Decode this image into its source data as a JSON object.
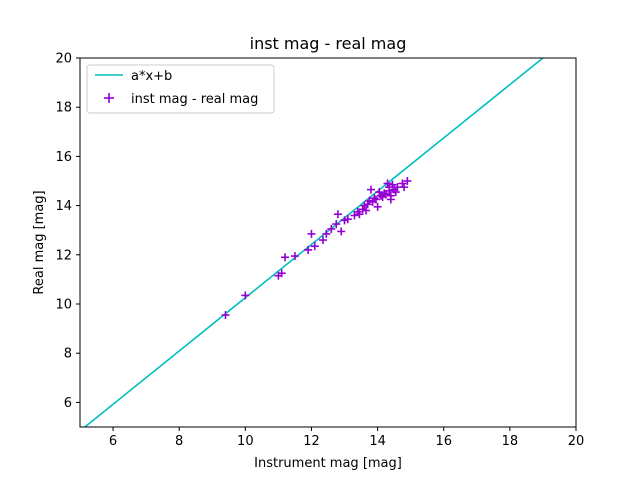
{
  "chart_data": {
    "type": "scatter",
    "title": "inst mag - real mag",
    "xlabel": "Instrument mag [mag]",
    "ylabel": "Real mag [mag]",
    "xlim": [
      5,
      20
    ],
    "ylim": [
      5,
      20
    ],
    "xticks": [
      6,
      8,
      10,
      12,
      14,
      16,
      18,
      20
    ],
    "yticks": [
      6,
      8,
      10,
      12,
      14,
      16,
      18,
      20
    ],
    "grid": false,
    "legend_position": "top-left",
    "series": [
      {
        "name": "a*x+b",
        "kind": "line",
        "color": "#00bfbf",
        "x": [
          5.1,
          19.0
        ],
        "y": [
          4.95,
          20.0
        ]
      },
      {
        "name": "inst mag - real mag",
        "kind": "scatter",
        "marker": "plus",
        "color": "#9400d3",
        "points": [
          [
            9.4,
            9.55
          ],
          [
            10.0,
            10.35
          ],
          [
            11.0,
            11.15
          ],
          [
            11.1,
            11.25
          ],
          [
            11.2,
            11.9
          ],
          [
            11.5,
            11.95
          ],
          [
            11.9,
            12.2
          ],
          [
            12.0,
            12.85
          ],
          [
            12.1,
            12.35
          ],
          [
            12.35,
            12.6
          ],
          [
            12.45,
            12.85
          ],
          [
            12.6,
            13.05
          ],
          [
            12.75,
            13.25
          ],
          [
            12.8,
            13.65
          ],
          [
            12.9,
            12.95
          ],
          [
            13.0,
            13.4
          ],
          [
            13.1,
            13.45
          ],
          [
            13.3,
            13.6
          ],
          [
            13.4,
            13.75
          ],
          [
            13.45,
            13.65
          ],
          [
            13.55,
            13.85
          ],
          [
            13.6,
            14.0
          ],
          [
            13.65,
            13.8
          ],
          [
            13.7,
            14.05
          ],
          [
            13.75,
            14.2
          ],
          [
            13.8,
            14.65
          ],
          [
            13.85,
            14.15
          ],
          [
            13.9,
            14.3
          ],
          [
            13.95,
            14.25
          ],
          [
            14.0,
            13.95
          ],
          [
            14.05,
            14.55
          ],
          [
            14.1,
            14.4
          ],
          [
            14.15,
            14.35
          ],
          [
            14.2,
            14.5
          ],
          [
            14.25,
            14.45
          ],
          [
            14.3,
            14.9
          ],
          [
            14.35,
            14.6
          ],
          [
            14.4,
            14.4
          ],
          [
            14.45,
            14.85
          ],
          [
            14.5,
            14.65
          ],
          [
            14.55,
            14.55
          ],
          [
            14.6,
            14.75
          ],
          [
            14.75,
            14.9
          ],
          [
            14.8,
            14.75
          ],
          [
            14.9,
            15.0
          ],
          [
            14.4,
            14.25
          ],
          [
            14.35,
            14.75
          ]
        ]
      }
    ]
  }
}
